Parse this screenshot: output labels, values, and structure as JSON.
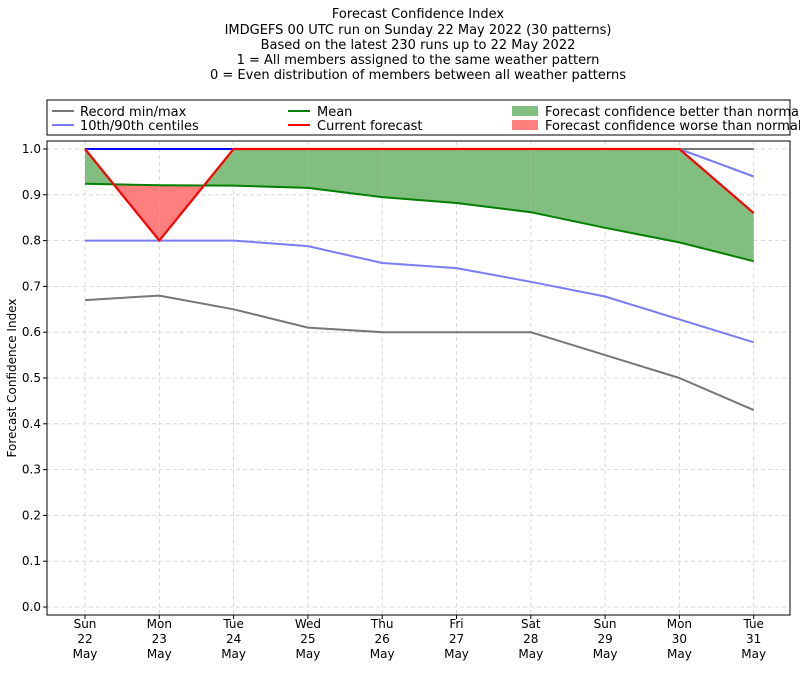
{
  "chart_data": {
    "type": "line",
    "title_lines": [
      "Forecast Confidence Index",
      "IMDGEFS 00 UTC run on Sunday 22 May 2022 (30 patterns)",
      "Based on the latest 230 runs up to 22 May 2022",
      "1 = All members assigned to the same weather pattern",
      "0 = Even distribution of members between all weather patterns"
    ],
    "ylabel": "Forecast Confidence Index",
    "ylim": [
      0,
      1
    ],
    "yticks": [
      "0.0",
      "0.1",
      "0.2",
      "0.3",
      "0.4",
      "0.5",
      "0.6",
      "0.7",
      "0.8",
      "0.9",
      "1.0"
    ],
    "grid": true,
    "legend_position": "top",
    "categories": [
      {
        "day": "Sun",
        "date": "22",
        "month": "May"
      },
      {
        "day": "Mon",
        "date": "23",
        "month": "May"
      },
      {
        "day": "Tue",
        "date": "24",
        "month": "May"
      },
      {
        "day": "Wed",
        "date": "25",
        "month": "May"
      },
      {
        "day": "Thu",
        "date": "26",
        "month": "May"
      },
      {
        "day": "Fri",
        "date": "27",
        "month": "May"
      },
      {
        "day": "Sat",
        "date": "28",
        "month": "May"
      },
      {
        "day": "Sun",
        "date": "29",
        "month": "May"
      },
      {
        "day": "Mon",
        "date": "30",
        "month": "May"
      },
      {
        "day": "Tue",
        "date": "31",
        "month": "May"
      }
    ],
    "series": {
      "record_min": [
        0.67,
        0.68,
        0.65,
        0.61,
        0.6,
        0.6,
        0.6,
        0.55,
        0.5,
        0.43
      ],
      "record_max": [
        1.0,
        1.0,
        1.0,
        1.0,
        1.0,
        1.0,
        1.0,
        1.0,
        1.0,
        1.0
      ],
      "centile_10": [
        0.8,
        0.8,
        0.8,
        0.788,
        0.751,
        0.74,
        0.71,
        0.678,
        0.628,
        0.578
      ],
      "centile_90": [
        1.0,
        1.0,
        1.0,
        1.0,
        1.0,
        1.0,
        1.0,
        1.0,
        1.0,
        0.94
      ],
      "mean": [
        0.924,
        0.921,
        0.92,
        0.915,
        0.895,
        0.882,
        0.862,
        0.828,
        0.796,
        0.755
      ],
      "current": [
        1.0,
        0.8,
        1.0,
        1.0,
        1.0,
        1.0,
        1.0,
        1.0,
        1.0,
        0.86
      ]
    },
    "legend": {
      "record": "Record min/max",
      "centiles": "10th/90th centiles",
      "mean": "Mean",
      "current": "Current forecast",
      "better": "Forecast confidence better than normal",
      "worse": "Forecast confidence worse than normal"
    },
    "colors": {
      "record": "#777777",
      "centiles": "#7b7bf5",
      "max_centile_top": "#0000ff",
      "mean": "#007f00",
      "current": "#ff0000",
      "better": "#80bf80",
      "worse": "#ff7f7f",
      "grid": "#d0d0d0"
    }
  }
}
